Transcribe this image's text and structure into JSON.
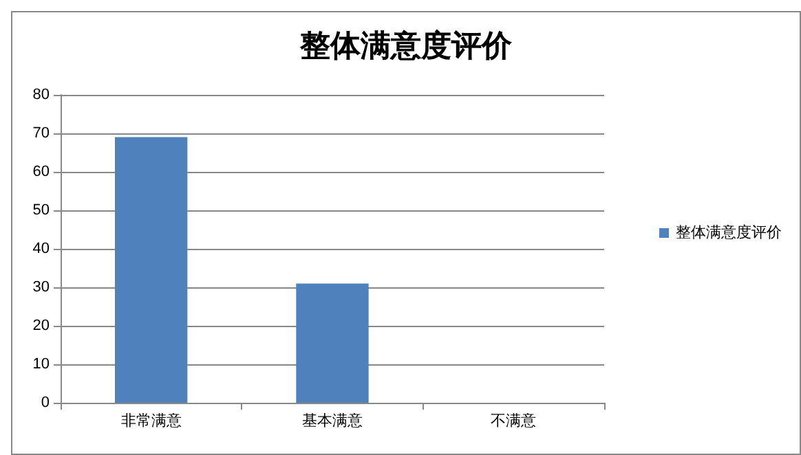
{
  "chart_data": {
    "type": "bar",
    "title": "整体满意度评价",
    "categories": [
      "非常满意",
      "基本满意",
      "不满意"
    ],
    "series": [
      {
        "name": "整体满意度评价",
        "color": "#4f81bd",
        "values": [
          69,
          31,
          0
        ]
      }
    ],
    "ylim": [
      0,
      80
    ],
    "yticks": [
      0,
      10,
      20,
      30,
      40,
      50,
      60,
      70,
      80
    ],
    "grid": "y",
    "legend": "right"
  }
}
